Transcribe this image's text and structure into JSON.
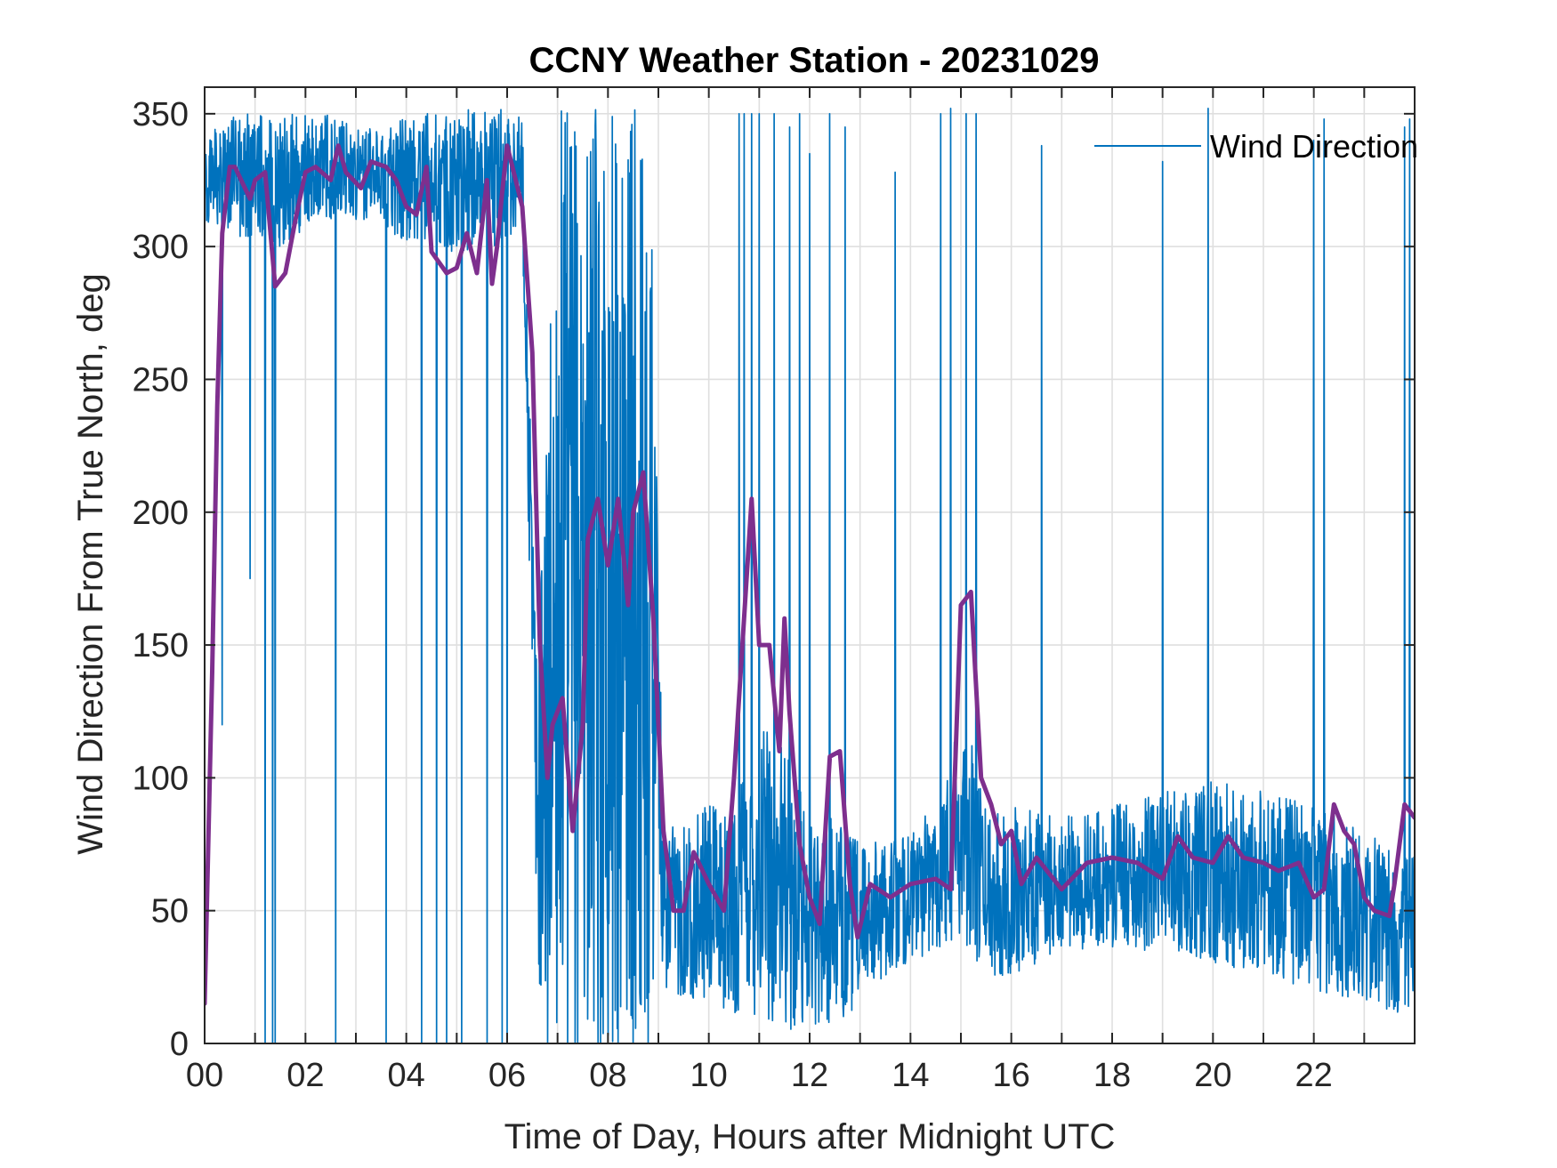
{
  "chart_data": {
    "type": "line",
    "title": "CCNY Weather Station - 20231029",
    "xlabel": "Time of Day, Hours after Midnight UTC",
    "ylabel": "Wind Direction From True North, deg",
    "xlim": [
      0,
      24
    ],
    "ylim": [
      0,
      360
    ],
    "grid": true,
    "legend_position": "top-right",
    "x_ticks": [
      0,
      2,
      4,
      6,
      8,
      10,
      12,
      14,
      16,
      18,
      20,
      22
    ],
    "x_tick_labels": [
      "00",
      "02",
      "04",
      "06",
      "08",
      "10",
      "12",
      "14",
      "16",
      "18",
      "20",
      "22"
    ],
    "y_ticks": [
      0,
      50,
      100,
      150,
      200,
      250,
      300,
      350
    ],
    "y_tick_labels": [
      "0",
      "50",
      "100",
      "150",
      "200",
      "250",
      "300",
      "350"
    ],
    "colors": {
      "raw": "#0072BD",
      "smoothed": "#7E2F8E",
      "axis": "#262626",
      "grid": "#DFDFDF"
    },
    "series": [
      {
        "name": "Wind Direction",
        "style": "raw-noisy",
        "color": "#0072BD",
        "in_legend": true,
        "envelope": [
          [
            0.0,
            310,
            340
          ],
          [
            0.5,
            300,
            350
          ],
          [
            1.0,
            305,
            350
          ],
          [
            1.5,
            300,
            350
          ],
          [
            2.0,
            305,
            350
          ],
          [
            2.5,
            310,
            350
          ],
          [
            3.0,
            310,
            345
          ],
          [
            3.5,
            310,
            345
          ],
          [
            4.0,
            300,
            350
          ],
          [
            4.5,
            300,
            350
          ],
          [
            5.0,
            295,
            352
          ],
          [
            5.5,
            300,
            352
          ],
          [
            6.0,
            300,
            352
          ],
          [
            6.3,
            310,
            352
          ],
          [
            6.6,
            20,
            140
          ],
          [
            7.0,
            0,
            352
          ],
          [
            8.0,
            0,
            352
          ],
          [
            8.9,
            0,
            352
          ],
          [
            9.1,
            20,
            80
          ],
          [
            10.0,
            15,
            90
          ],
          [
            10.5,
            10,
            90
          ],
          [
            11.0,
            10,
            130
          ],
          [
            11.5,
            5,
            110
          ],
          [
            12.0,
            5,
            90
          ],
          [
            12.8,
            10,
            80
          ],
          [
            13.0,
            20,
            75
          ],
          [
            14.0,
            30,
            80
          ],
          [
            14.5,
            35,
            90
          ],
          [
            15.0,
            40,
            130
          ],
          [
            15.5,
            25,
            90
          ],
          [
            16.0,
            25,
            90
          ],
          [
            17.0,
            35,
            85
          ],
          [
            18.0,
            35,
            90
          ],
          [
            19.0,
            35,
            95
          ],
          [
            20.0,
            30,
            100
          ],
          [
            21.0,
            25,
            95
          ],
          [
            22.0,
            20,
            90
          ],
          [
            23.0,
            15,
            80
          ],
          [
            24.0,
            10,
            70
          ]
        ],
        "spikes": [
          [
            0.35,
            120
          ],
          [
            0.9,
            175
          ],
          [
            1.2,
            0
          ],
          [
            1.35,
            0
          ],
          [
            1.4,
            0
          ],
          [
            2.6,
            0
          ],
          [
            3.6,
            0
          ],
          [
            4.3,
            0
          ],
          [
            4.6,
            0
          ],
          [
            4.8,
            0
          ],
          [
            5.1,
            0
          ],
          [
            5.6,
            0
          ],
          [
            5.9,
            0
          ],
          [
            6.0,
            0
          ],
          [
            6.8,
            0
          ],
          [
            7.2,
            0
          ],
          [
            7.4,
            0
          ],
          [
            7.8,
            0
          ],
          [
            8.2,
            0
          ],
          [
            8.5,
            0
          ],
          [
            8.8,
            0
          ],
          [
            10.6,
            350
          ],
          [
            10.7,
            350
          ],
          [
            10.85,
            350
          ],
          [
            11.0,
            350
          ],
          [
            11.3,
            350
          ],
          [
            11.6,
            345
          ],
          [
            11.8,
            350
          ],
          [
            12.0,
            335
          ],
          [
            12.4,
            350
          ],
          [
            12.7,
            345
          ],
          [
            13.7,
            328
          ],
          [
            14.6,
            350
          ],
          [
            14.8,
            352
          ],
          [
            15.1,
            350
          ],
          [
            15.3,
            350
          ],
          [
            16.6,
            338
          ],
          [
            19.0,
            332
          ],
          [
            19.9,
            352
          ],
          [
            22.0,
            340
          ],
          [
            22.2,
            348
          ],
          [
            23.8,
            345
          ],
          [
            23.9,
            348
          ]
        ]
      },
      {
        "name": "Smoothed",
        "style": "thick",
        "color": "#7E2F8E",
        "in_legend": false,
        "x": [
          0.0,
          0.15,
          0.25,
          0.35,
          0.5,
          0.6,
          0.9,
          1.0,
          1.2,
          1.4,
          1.6,
          1.8,
          2.0,
          2.2,
          2.5,
          2.65,
          2.8,
          3.1,
          3.3,
          3.6,
          3.8,
          4.0,
          4.2,
          4.4,
          4.5,
          4.8,
          5.0,
          5.2,
          5.4,
          5.6,
          5.7,
          5.8,
          5.9,
          6.0,
          6.3,
          6.5,
          6.65,
          6.8,
          6.9,
          7.1,
          7.3,
          7.5,
          7.6,
          7.8,
          8.0,
          8.2,
          8.4,
          8.5,
          8.7,
          8.9,
          9.1,
          9.3,
          9.5,
          9.7,
          10.0,
          10.3,
          10.5,
          10.7,
          10.85,
          11.0,
          11.2,
          11.4,
          11.5,
          11.6,
          11.8,
          11.9,
          12.0,
          12.2,
          12.4,
          12.6,
          12.8,
          12.95,
          13.2,
          13.6,
          14.0,
          14.5,
          14.8,
          15.0,
          15.2,
          15.4,
          15.6,
          15.8,
          16.0,
          16.2,
          16.5,
          17.0,
          17.5,
          18.0,
          18.5,
          19.0,
          19.3,
          19.6,
          20.0,
          20.3,
          20.6,
          21.0,
          21.3,
          21.7,
          22.0,
          22.2,
          22.4,
          22.6,
          22.8,
          23.0,
          23.2,
          23.5,
          23.6,
          23.8,
          24.0
        ],
        "y": [
          15,
          140,
          240,
          305,
          330,
          330,
          318,
          325,
          328,
          285,
          290,
          310,
          328,
          330,
          325,
          338,
          328,
          322,
          332,
          330,
          325,
          315,
          312,
          330,
          298,
          290,
          292,
          305,
          290,
          325,
          286,
          300,
          320,
          338,
          315,
          260,
          150,
          100,
          120,
          130,
          80,
          120,
          190,
          205,
          180,
          205,
          165,
          200,
          215,
          160,
          80,
          50,
          50,
          72,
          60,
          50,
          100,
          160,
          205,
          150,
          150,
          110,
          160,
          125,
          75,
          65,
          55,
          45,
          108,
          110,
          60,
          40,
          60,
          55,
          60,
          62,
          58,
          165,
          170,
          100,
          90,
          75,
          80,
          60,
          70,
          58,
          68,
          70,
          68,
          62,
          78,
          70,
          68,
          78,
          70,
          68,
          65,
          68,
          55,
          58,
          90,
          80,
          75,
          55,
          50,
          48,
          60,
          90,
          85
        ]
      }
    ]
  }
}
